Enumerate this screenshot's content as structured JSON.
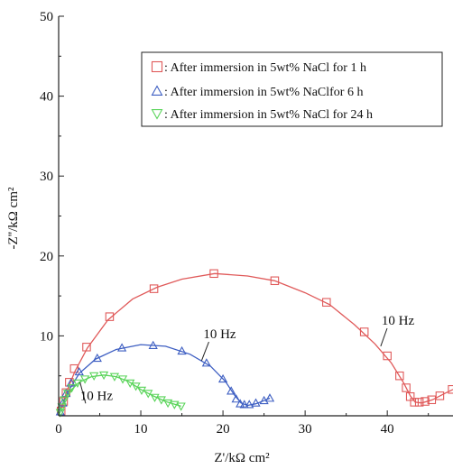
{
  "chart_data": {
    "type": "scatter",
    "title": "",
    "xlabel": "Z'/kΩ cm²",
    "ylabel": "-Z''/kΩ cm²",
    "xlim": [
      0,
      48
    ],
    "ylim": [
      0,
      50
    ],
    "x_ticks": [
      "0",
      "10",
      "20",
      "30",
      "40"
    ],
    "y_ticks": [
      "10",
      "20",
      "30",
      "40",
      "50"
    ],
    "grid": false,
    "legend_position": "top-right",
    "series": [
      {
        "name": ": After immersion in 5wt% NaCl for 1 h",
        "marker": "square",
        "color": "#e05a5a",
        "points": [
          [
            0.3,
            0.6
          ],
          [
            0.6,
            1.8
          ],
          [
            0.9,
            2.9
          ],
          [
            1.3,
            4.2
          ],
          [
            1.9,
            5.9
          ],
          [
            3.4,
            8.6
          ],
          [
            6.2,
            12.4
          ],
          [
            11.6,
            15.9
          ],
          [
            18.9,
            17.8
          ],
          [
            26.3,
            16.9
          ],
          [
            32.6,
            14.2
          ],
          [
            37.2,
            10.5
          ],
          [
            40.0,
            7.5
          ],
          [
            41.5,
            5.0
          ],
          [
            42.3,
            3.5
          ],
          [
            42.8,
            2.4
          ],
          [
            43.3,
            1.7
          ],
          [
            43.9,
            1.7
          ],
          [
            44.6,
            1.8
          ],
          [
            45.4,
            2.0
          ],
          [
            46.4,
            2.5
          ],
          [
            47.9,
            3.3
          ]
        ],
        "fit": [
          [
            0,
            0
          ],
          [
            0.5,
            1.5
          ],
          [
            1.0,
            3.1
          ],
          [
            2.0,
            5.6
          ],
          [
            3.5,
            8.5
          ],
          [
            6.0,
            12.0
          ],
          [
            9.0,
            14.6
          ],
          [
            12.0,
            16.1
          ],
          [
            15.0,
            17.1
          ],
          [
            19.0,
            17.8
          ],
          [
            23.0,
            17.5
          ],
          [
            26.3,
            16.9
          ],
          [
            30.0,
            15.4
          ],
          [
            33.0,
            13.9
          ],
          [
            36.0,
            11.4
          ],
          [
            38.5,
            9.0
          ],
          [
            40.5,
            6.6
          ],
          [
            42.0,
            4.1
          ],
          [
            42.8,
            2.5
          ],
          [
            43.4,
            1.7
          ],
          [
            44.2,
            1.6
          ],
          [
            45.5,
            2.0
          ],
          [
            47.0,
            2.8
          ],
          [
            48.0,
            3.3
          ]
        ]
      },
      {
        "name": ": After immersion in 5wt% NaClfor 6 h",
        "marker": "triangle-up",
        "color": "#3d5ec2",
        "points": [
          [
            0.2,
            0.5
          ],
          [
            0.5,
            1.6
          ],
          [
            0.9,
            2.8
          ],
          [
            1.5,
            4.1
          ],
          [
            2.5,
            5.5
          ],
          [
            4.7,
            7.2
          ],
          [
            7.7,
            8.5
          ],
          [
            11.5,
            8.8
          ],
          [
            15.0,
            8.1
          ],
          [
            18.0,
            6.6
          ],
          [
            20.0,
            4.6
          ],
          [
            21.0,
            3.1
          ],
          [
            21.6,
            2.1
          ],
          [
            22.1,
            1.5
          ],
          [
            22.6,
            1.4
          ],
          [
            23.2,
            1.4
          ],
          [
            24.0,
            1.6
          ],
          [
            25.0,
            1.9
          ],
          [
            25.7,
            2.2
          ]
        ],
        "fit": [
          [
            0,
            0
          ],
          [
            0.5,
            1.5
          ],
          [
            1.2,
            3.1
          ],
          [
            2.5,
            5.3
          ],
          [
            4.5,
            7.1
          ],
          [
            7.0,
            8.3
          ],
          [
            10.0,
            8.9
          ],
          [
            13.0,
            8.7
          ],
          [
            16.0,
            7.7
          ],
          [
            18.5,
            6.2
          ],
          [
            20.3,
            4.3
          ],
          [
            21.4,
            2.6
          ],
          [
            22.2,
            1.6
          ],
          [
            23.0,
            1.3
          ],
          [
            24.0,
            1.5
          ],
          [
            25.0,
            1.9
          ],
          [
            25.7,
            2.2
          ]
        ]
      },
      {
        "name": ": After immersion in 5wt% NaCl for 24 h",
        "marker": "triangle-down",
        "color": "#5ad45a",
        "points": [
          [
            0.2,
            0.4
          ],
          [
            0.4,
            1.1
          ],
          [
            0.7,
            2.0
          ],
          [
            1.1,
            2.8
          ],
          [
            1.6,
            3.5
          ],
          [
            2.3,
            4.1
          ],
          [
            3.2,
            4.6
          ],
          [
            4.3,
            5.0
          ],
          [
            5.5,
            5.1
          ],
          [
            6.8,
            4.9
          ],
          [
            7.8,
            4.6
          ],
          [
            8.7,
            4.1
          ],
          [
            9.4,
            3.7
          ],
          [
            10.1,
            3.2
          ],
          [
            10.9,
            2.8
          ],
          [
            11.7,
            2.3
          ],
          [
            12.5,
            2.0
          ],
          [
            13.3,
            1.6
          ],
          [
            14.1,
            1.4
          ],
          [
            14.9,
            1.2
          ]
        ],
        "fit": [
          [
            0,
            0
          ],
          [
            0.5,
            1.4
          ],
          [
            1.2,
            2.9
          ],
          [
            2.5,
            4.2
          ],
          [
            4.0,
            4.9
          ],
          [
            5.5,
            5.1
          ],
          [
            7.0,
            4.9
          ],
          [
            8.5,
            4.3
          ],
          [
            10.0,
            3.3
          ],
          [
            11.5,
            2.5
          ],
          [
            13.0,
            1.8
          ],
          [
            14.9,
            1.2
          ]
        ]
      }
    ],
    "annotations": [
      {
        "text": "10 Hz",
        "x": 41.3,
        "y": 11.4,
        "arrow_to": [
          39.2,
          8.7
        ]
      },
      {
        "text": "10 Hz",
        "x": 19.6,
        "y": 9.7,
        "arrow_to": [
          17.4,
          6.9
        ]
      },
      {
        "text": "10 Hz",
        "x": 4.6,
        "y": 2.0,
        "arrow_to": [
          2.6,
          4.2
        ]
      }
    ]
  }
}
